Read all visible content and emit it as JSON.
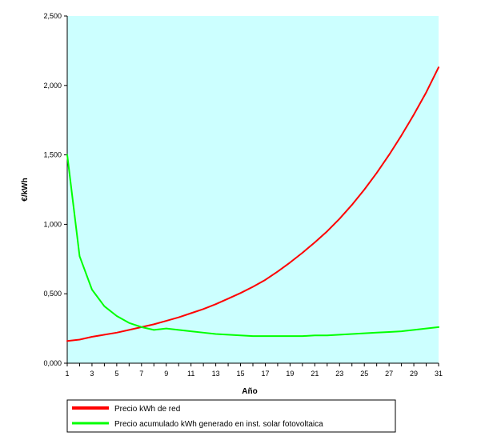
{
  "chart_data": {
    "type": "line",
    "xlabel": "Año",
    "ylabel": "€/kWh",
    "xlim": [
      1,
      31
    ],
    "ylim": [
      0,
      2.5
    ],
    "x_ticks": [
      1,
      3,
      5,
      7,
      9,
      11,
      13,
      15,
      17,
      19,
      21,
      23,
      25,
      27,
      29,
      31
    ],
    "y_ticks": [
      0,
      0.5,
      1,
      1.5,
      2,
      2.5
    ],
    "y_tick_labels": [
      "0,000",
      "0,500",
      "1,000",
      "1,500",
      "2,000",
      "2,500"
    ],
    "plot_background": "#ccffff",
    "grid": false,
    "legend_position": "bottom",
    "series": [
      {
        "name": "Precio kWh de red",
        "color": "#ff0000",
        "x": [
          1,
          2,
          3,
          4,
          5,
          6,
          7,
          8,
          9,
          10,
          11,
          12,
          13,
          14,
          15,
          16,
          17,
          18,
          19,
          20,
          21,
          22,
          23,
          24,
          25,
          26,
          27,
          28,
          29,
          30,
          31
        ],
        "values": [
          0.16,
          0.17,
          0.19,
          0.205,
          0.22,
          0.24,
          0.26,
          0.28,
          0.305,
          0.33,
          0.36,
          0.39,
          0.425,
          0.465,
          0.505,
          0.55,
          0.6,
          0.66,
          0.725,
          0.795,
          0.87,
          0.95,
          1.04,
          1.14,
          1.25,
          1.37,
          1.5,
          1.64,
          1.79,
          1.95,
          2.13
        ]
      },
      {
        "name": "Precio acumulado kWh generado en inst. solar fotovoltaica",
        "color": "#00ff00",
        "x": [
          1,
          2,
          3,
          4,
          5,
          6,
          7,
          8,
          9,
          10,
          11,
          12,
          13,
          14,
          15,
          16,
          17,
          18,
          19,
          20,
          21,
          22,
          23,
          24,
          25,
          26,
          27,
          28,
          29,
          30,
          31
        ],
        "values": [
          1.5,
          0.77,
          0.53,
          0.41,
          0.34,
          0.29,
          0.26,
          0.24,
          0.25,
          0.24,
          0.23,
          0.22,
          0.21,
          0.205,
          0.2,
          0.195,
          0.195,
          0.195,
          0.195,
          0.195,
          0.2,
          0.2,
          0.205,
          0.21,
          0.215,
          0.22,
          0.225,
          0.23,
          0.24,
          0.25,
          0.26
        ]
      }
    ]
  }
}
